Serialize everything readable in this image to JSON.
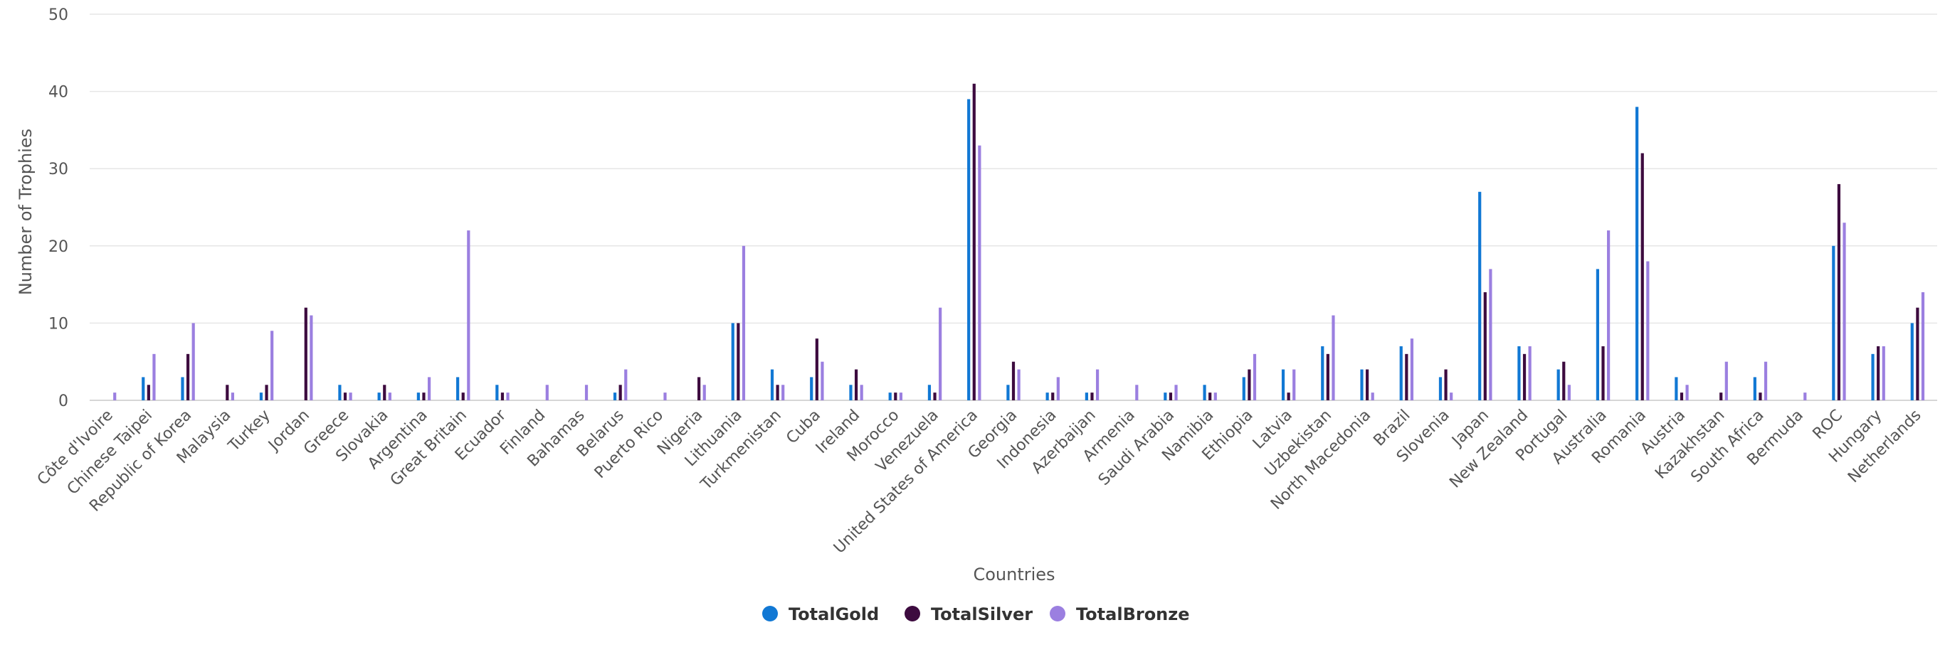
{
  "chart_data": {
    "type": "bar",
    "xlabel": "Countries",
    "ylabel": "Number of Trophies",
    "ylim": [
      0,
      50
    ],
    "yticks": [
      0,
      10,
      20,
      30,
      40,
      50
    ],
    "grid": true,
    "legend_position": "bottom-center",
    "colors": {
      "TotalGold": "#1178d4",
      "TotalSilver": "#3d0b3f",
      "TotalBronze": "#9b7fe0"
    },
    "categories": [
      "Côte d'Ivoire",
      "Chinese Taipei",
      "Republic of Korea",
      "Malaysia",
      "Turkey",
      "Jordan",
      "Greece",
      "Slovakia",
      "Argentina",
      "Great Britain",
      "Ecuador",
      "Finland",
      "Bahamas",
      "Belarus",
      "Puerto Rico",
      "Nigeria",
      "Lithuania",
      "Turkmenistan",
      "Cuba",
      "Ireland",
      "Morocco",
      "Venezuela",
      "United States of America",
      "Georgia",
      "Indonesia",
      "Azerbaijan",
      "Armenia",
      "Saudi Arabia",
      "Namibia",
      "Ethiopia",
      "Latvia",
      "Uzbekistan",
      "North Macedonia",
      "Brazil",
      "Slovenia",
      "Japan",
      "New Zealand",
      "Portugal",
      "Australia",
      "Romania",
      "Austria",
      "Kazakhstan",
      "South Africa",
      "Bermuda",
      "ROC",
      "Hungary",
      "Netherlands"
    ],
    "series": [
      {
        "name": "TotalGold",
        "values": [
          0,
          3,
          3,
          0,
          1,
          0,
          2,
          1,
          1,
          3,
          2,
          0,
          0,
          1,
          0,
          0,
          10,
          4,
          3,
          2,
          1,
          2,
          39,
          2,
          1,
          1,
          0,
          1,
          2,
          3,
          4,
          7,
          4,
          7,
          3,
          27,
          7,
          4,
          17,
          38,
          3,
          0,
          3,
          0,
          20,
          6,
          10
        ]
      },
      {
        "name": "TotalSilver",
        "values": [
          0,
          2,
          6,
          2,
          2,
          12,
          1,
          2,
          1,
          1,
          1,
          0,
          0,
          2,
          0,
          3,
          10,
          2,
          8,
          4,
          1,
          1,
          41,
          5,
          1,
          1,
          0,
          1,
          1,
          4,
          1,
          6,
          4,
          6,
          4,
          14,
          6,
          5,
          7,
          32,
          1,
          1,
          1,
          0,
          28,
          7,
          12
        ]
      },
      {
        "name": "TotalBronze",
        "values": [
          1,
          6,
          10,
          1,
          9,
          11,
          1,
          1,
          3,
          22,
          1,
          2,
          2,
          4,
          1,
          2,
          20,
          2,
          5,
          2,
          1,
          12,
          33,
          4,
          3,
          4,
          2,
          2,
          1,
          6,
          4,
          11,
          1,
          8,
          1,
          17,
          7,
          2,
          22,
          18,
          2,
          5,
          5,
          1,
          23,
          7,
          14
        ]
      }
    ]
  }
}
